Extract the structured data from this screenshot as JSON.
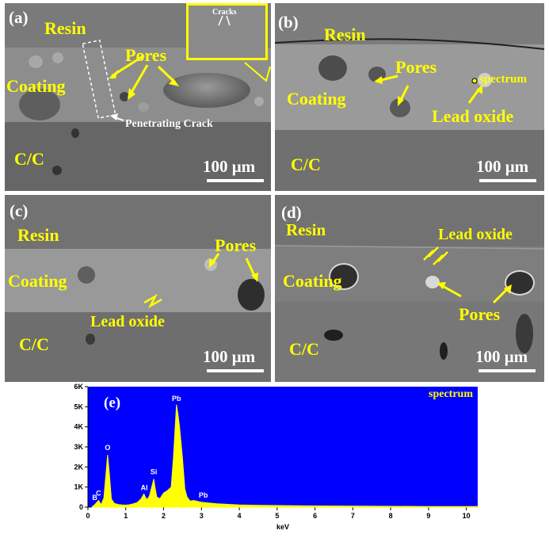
{
  "panels": {
    "a": {
      "tag": "(a)",
      "labels": {
        "resin": "Resin",
        "coating": "Coating",
        "cc": "C/C",
        "pores": "Pores",
        "crack": "Penetrating Crack",
        "inset": "Cracks"
      },
      "scale": "100 μm"
    },
    "b": {
      "tag": "(b)",
      "labels": {
        "resin": "Resin",
        "coating": "Coating",
        "cc": "C/C",
        "pores": "Pores",
        "lead": "Lead oxide",
        "spectrum": "spectrum"
      },
      "scale": "100 μm"
    },
    "c": {
      "tag": "(c)",
      "labels": {
        "resin": "Resin",
        "coating": "Coating",
        "cc": "C/C",
        "pores": "Pores",
        "lead": "Lead oxide"
      },
      "scale": "100 μm"
    },
    "d": {
      "tag": "(d)",
      "labels": {
        "resin": "Resin",
        "coating": "Coating",
        "cc": "C/C",
        "pores": "Pores",
        "lead": "Lead oxide"
      },
      "scale": "100 μm"
    },
    "e": {
      "tag": "(e)",
      "legend": "spectrum",
      "background": "#0000ff",
      "trace_color": "#ffff00"
    }
  },
  "chart_data": {
    "type": "line",
    "title": "",
    "legend": "spectrum",
    "xlabel": "keV",
    "ylabel": "",
    "xlim": [
      0,
      10.3
    ],
    "ylim": [
      0,
      6000
    ],
    "xticks": [
      0,
      1,
      2,
      3,
      4,
      5,
      6,
      7,
      8,
      9,
      10
    ],
    "yticks": [
      0,
      1000,
      2000,
      3000,
      4000,
      5000,
      6000
    ],
    "ytick_labels": [
      "0",
      "1K",
      "2K",
      "3K",
      "4K",
      "5K",
      "6K"
    ],
    "xtick_labels": [
      "0",
      "1",
      "2",
      "3",
      "4",
      "5",
      "6",
      "7",
      "8",
      "9",
      "10"
    ],
    "series": [
      {
        "x": [
          0.1,
          0.18,
          0.28,
          0.35,
          0.42,
          0.48,
          0.52,
          0.56,
          0.62,
          0.7,
          0.8,
          0.9,
          1.0,
          1.1,
          1.2,
          1.3,
          1.4,
          1.48,
          1.52,
          1.56,
          1.62,
          1.7,
          1.74,
          1.78,
          1.82,
          1.9,
          2.0,
          2.1,
          2.2,
          2.26,
          2.3,
          2.34,
          2.38,
          2.42,
          2.46,
          2.5,
          2.56,
          2.62,
          2.7,
          2.8,
          2.9,
          3.0,
          3.2,
          3.4,
          3.6,
          3.8,
          4.0,
          4.5,
          5.0,
          6.0,
          7.0,
          8.0,
          9.0,
          10.0,
          10.3
        ],
        "y": [
          0,
          120,
          330,
          120,
          450,
          1700,
          2600,
          1800,
          400,
          180,
          130,
          110,
          100,
          120,
          160,
          220,
          400,
          650,
          480,
          380,
          520,
          1100,
          1400,
          900,
          500,
          420,
          700,
          820,
          1000,
          2500,
          3800,
          5100,
          4600,
          4000,
          3200,
          2400,
          900,
          500,
          300,
          330,
          280,
          240,
          200,
          170,
          150,
          130,
          110,
          90,
          80,
          60,
          50,
          40,
          30,
          30,
          30
        ]
      }
    ],
    "peak_labels": [
      {
        "text": "B",
        "x": 0.18
      },
      {
        "text": "C",
        "x": 0.28
      },
      {
        "text": "O",
        "x": 0.52
      },
      {
        "text": "Al",
        "x": 1.49
      },
      {
        "text": "Si",
        "x": 1.74
      },
      {
        "text": "Pb",
        "x": 2.34
      },
      {
        "text": "Pb",
        "x": 3.05
      }
    ]
  }
}
